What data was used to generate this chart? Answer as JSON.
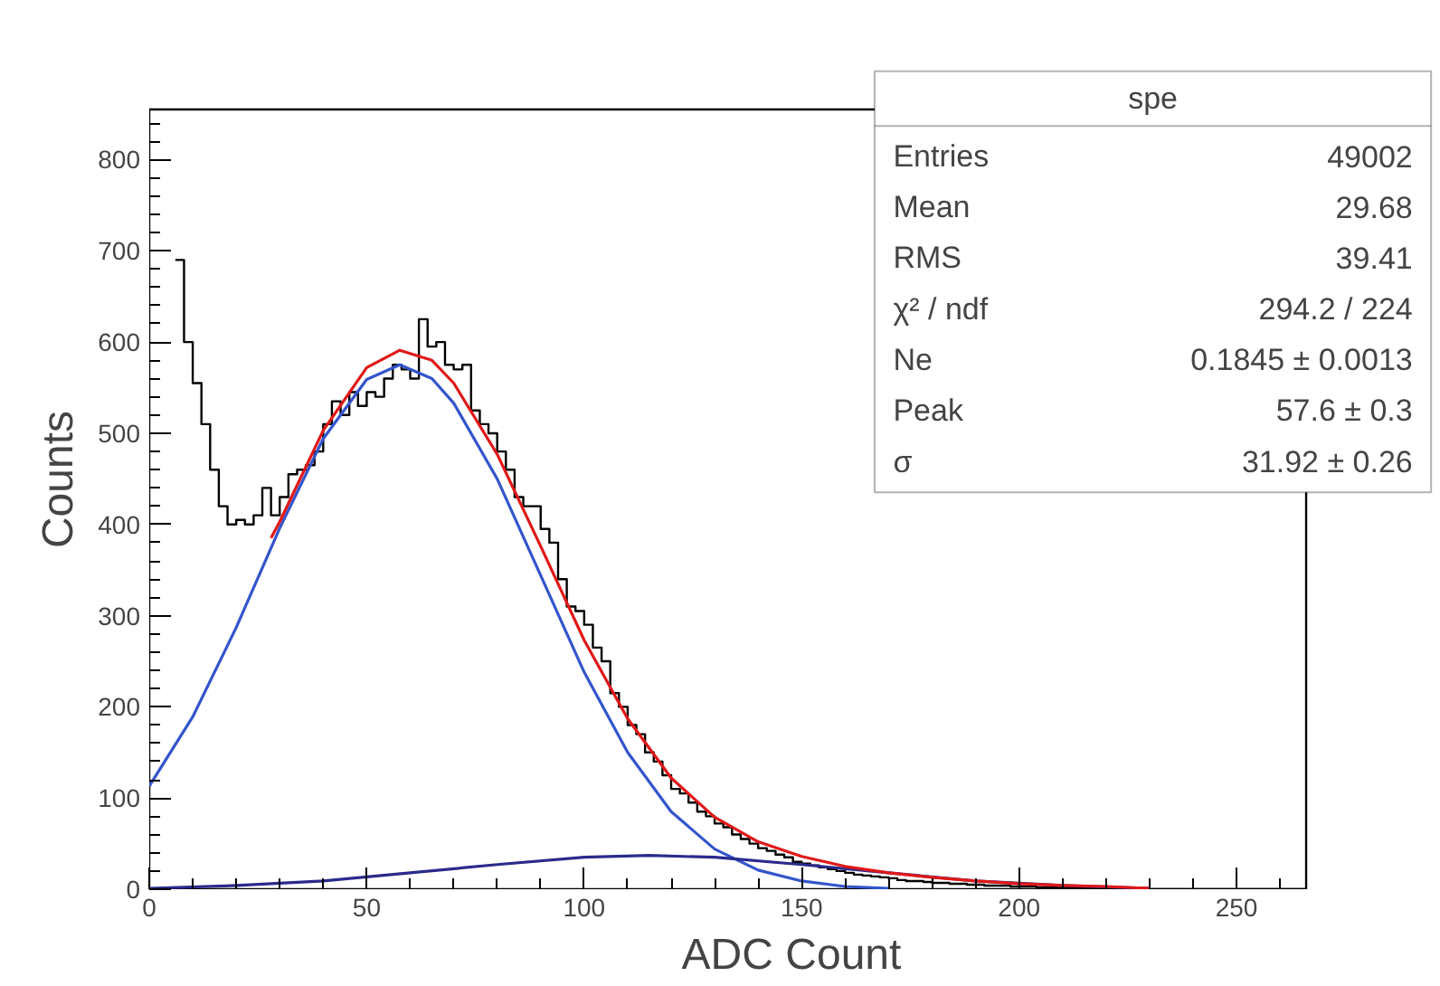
{
  "chart_data": {
    "type": "histogram",
    "xlabel": "ADC Count",
    "ylabel": "Counts",
    "xlim": [
      0,
      266
    ],
    "ylim": [
      0,
      855
    ],
    "xticks": [
      0,
      50,
      100,
      150,
      200,
      250
    ],
    "yticks": [
      0,
      100,
      200,
      300,
      400,
      500,
      600,
      700,
      800
    ],
    "grid": false,
    "bins": [
      6,
      8,
      10,
      12,
      14,
      16,
      18,
      20,
      22,
      24,
      26,
      28,
      30,
      32,
      34,
      36,
      38,
      40,
      42,
      44,
      46,
      48,
      50,
      52,
      54,
      56,
      58,
      60,
      62,
      64,
      66,
      68,
      70,
      72,
      74,
      76,
      78,
      80,
      82,
      84,
      86,
      88,
      90,
      92,
      94,
      96,
      98,
      100,
      102,
      104,
      106,
      108,
      110,
      112,
      114,
      116,
      118,
      120,
      122,
      124,
      126,
      128,
      130,
      132,
      134,
      136,
      138,
      140,
      142,
      144,
      146,
      148,
      150,
      152,
      154,
      156,
      158,
      160,
      162,
      164,
      166,
      168,
      170,
      172,
      174,
      176,
      178,
      180,
      182,
      184,
      186,
      188,
      190,
      192,
      194,
      196,
      198,
      200,
      202,
      204,
      206,
      208,
      210,
      212,
      214,
      216,
      218,
      220,
      222,
      224,
      226,
      228,
      230,
      232,
      234,
      236,
      238,
      240,
      242,
      244,
      246,
      248,
      250,
      252,
      254,
      256,
      258,
      260,
      262,
      264,
      266
    ],
    "series": [
      {
        "color": "#000000",
        "values": [
          690,
          600,
          555,
          510,
          460,
          420,
          400,
          405,
          400,
          410,
          440,
          410,
          430,
          455,
          460,
          465,
          480,
          510,
          535,
          520,
          545,
          530,
          545,
          540,
          560,
          575,
          570,
          560,
          625,
          595,
          600,
          575,
          570,
          575,
          525,
          510,
          500,
          480,
          460,
          430,
          420,
          420,
          395,
          380,
          340,
          310,
          305,
          290,
          265,
          250,
          215,
          200,
          180,
          170,
          150,
          140,
          125,
          110,
          105,
          95,
          85,
          80,
          72,
          68,
          60,
          55,
          50,
          45,
          42,
          38,
          35,
          30,
          28,
          26,
          24,
          22,
          20,
          18,
          16,
          15,
          14,
          13,
          12,
          10,
          9,
          9,
          8,
          7,
          7,
          6,
          6,
          5,
          5,
          4,
          4,
          4,
          3,
          3,
          3,
          2,
          2,
          2,
          2,
          2,
          1,
          1,
          1,
          1,
          1,
          1,
          1,
          1,
          0,
          0,
          0,
          0,
          0,
          0,
          0,
          0,
          0,
          0,
          0,
          0,
          0,
          0,
          0,
          0,
          0,
          0
        ]
      },
      {
        "type": "line",
        "color": "#3355cc",
        "x": [
          0,
          10,
          20,
          30,
          40,
          50,
          57.6,
          65,
          70,
          80,
          90,
          100,
          110,
          120,
          130,
          140,
          150,
          160,
          170
        ],
        "values": [
          113,
          189,
          287,
          396,
          494,
          559,
          575,
          560,
          533,
          450,
          344,
          238,
          150,
          85,
          44,
          21,
          9,
          3,
          1
        ]
      },
      {
        "type": "line",
        "color": "#2a2a8c",
        "x": [
          0,
          20,
          40,
          60,
          80,
          100,
          115,
          130,
          150,
          170,
          190,
          210,
          230
        ],
        "values": [
          1,
          4,
          9,
          18,
          27,
          35,
          37,
          35,
          27,
          18,
          9,
          4,
          1
        ]
      },
      {
        "type": "line",
        "color": "#e01818",
        "x": [
          28,
          30,
          40,
          50,
          57.6,
          65,
          70,
          80,
          90,
          100,
          110,
          120,
          130,
          140,
          150,
          160,
          170,
          180,
          190,
          200,
          210,
          220,
          230
        ],
        "values": [
          385,
          403,
          503,
          572,
          591,
          580,
          555,
          477,
          376,
          273,
          187,
          122,
          79,
          52,
          36,
          25,
          18,
          13,
          9,
          6,
          4,
          3,
          1
        ]
      }
    ],
    "annotations": [
      "spe",
      "Entries",
      "49002",
      "Mean",
      "29.68",
      "RMS",
      "39.41",
      "χ² / ndf",
      "294.2 / 224",
      "Ne",
      "0.1845 ± 0.0013",
      "Peak",
      "57.6 ± 0.3",
      "σ",
      "31.92 ± 0.26"
    ]
  }
}
